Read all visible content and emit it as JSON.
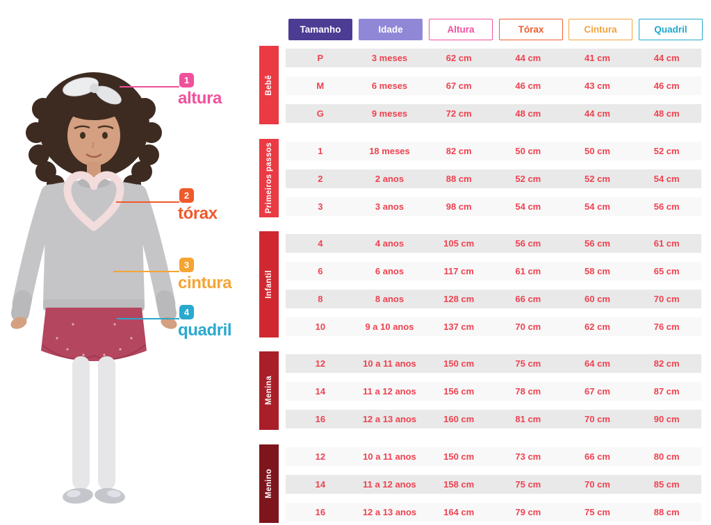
{
  "annotations": [
    {
      "num": "1",
      "label": "altura",
      "color": "#f0509b"
    },
    {
      "num": "2",
      "label": "tórax",
      "color": "#ee5a2b"
    },
    {
      "num": "3",
      "label": "cintura",
      "color": "#f5a434"
    },
    {
      "num": "4",
      "label": "quadril",
      "color": "#2aa9cf"
    }
  ],
  "chart_data": {
    "type": "table",
    "columns": [
      "Tamanho",
      "Idade",
      "Altura",
      "Tórax",
      "Cintura",
      "Quadril"
    ],
    "row_groups": [
      {
        "group": "Bebê",
        "rows": [
          [
            "P",
            "3 meses",
            "62 cm",
            "44 cm",
            "41 cm",
            "44 cm"
          ],
          [
            "M",
            "6 meses",
            "67 cm",
            "46 cm",
            "43 cm",
            "46 cm"
          ],
          [
            "G",
            "9 meses",
            "72 cm",
            "48 cm",
            "44 cm",
            "48 cm"
          ]
        ]
      },
      {
        "group": "Primeiros passos",
        "rows": [
          [
            "1",
            "18 meses",
            "82 cm",
            "50 cm",
            "50 cm",
            "52 cm"
          ],
          [
            "2",
            "2 anos",
            "88 cm",
            "52 cm",
            "52 cm",
            "54 cm"
          ],
          [
            "3",
            "3 anos",
            "98 cm",
            "54 cm",
            "54 cm",
            "56 cm"
          ]
        ]
      },
      {
        "group": "Infantil",
        "rows": [
          [
            "4",
            "4 anos",
            "105 cm",
            "56 cm",
            "56 cm",
            "61 cm"
          ],
          [
            "6",
            "6 anos",
            "117 cm",
            "61 cm",
            "58 cm",
            "65 cm"
          ],
          [
            "8",
            "8 anos",
            "128 cm",
            "66 cm",
            "60 cm",
            "70 cm"
          ],
          [
            "10",
            "9 a 10 anos",
            "137 cm",
            "70 cm",
            "62 cm",
            "76 cm"
          ]
        ]
      },
      {
        "group": "Menina",
        "rows": [
          [
            "12",
            "10 a 11 anos",
            "150 cm",
            "75 cm",
            "64 cm",
            "82 cm"
          ],
          [
            "14",
            "11 a 12 anos",
            "156 cm",
            "78 cm",
            "67 cm",
            "87 cm"
          ],
          [
            "16",
            "12 a 13 anos",
            "160 cm",
            "81 cm",
            "70 cm",
            "90 cm"
          ]
        ]
      },
      {
        "group": "Menino",
        "rows": [
          [
            "12",
            "10 a 11 anos",
            "150 cm",
            "73 cm",
            "66 cm",
            "80 cm"
          ],
          [
            "14",
            "11 a 12 anos",
            "158 cm",
            "75 cm",
            "70 cm",
            "85 cm"
          ],
          [
            "16",
            "12 a 13 anos",
            "164 cm",
            "79 cm",
            "75 cm",
            "88 cm"
          ]
        ]
      }
    ]
  },
  "table_style": {
    "headers": [
      {
        "label": "Tamanho",
        "style": "filled",
        "color": "#4c3c93"
      },
      {
        "label": "Idade",
        "style": "filled",
        "color": "#9187d7"
      },
      {
        "label": "Altura",
        "style": "outlined",
        "color": "#f0509b"
      },
      {
        "label": "Tórax",
        "style": "outlined",
        "color": "#ee5b2e"
      },
      {
        "label": "Cintura",
        "style": "outlined",
        "color": "#f2a33c"
      },
      {
        "label": "Quadril",
        "style": "outlined",
        "color": "#1fa9cb"
      }
    ],
    "group_colors": [
      "#ea3a44",
      "#ea3a44",
      "#cf2830",
      "#a81f28",
      "#7d151d"
    ],
    "cell_text_color": "#ee4250",
    "row_shade_dark": "#e9e9e9",
    "row_shade_light": "#f8f8f8"
  }
}
